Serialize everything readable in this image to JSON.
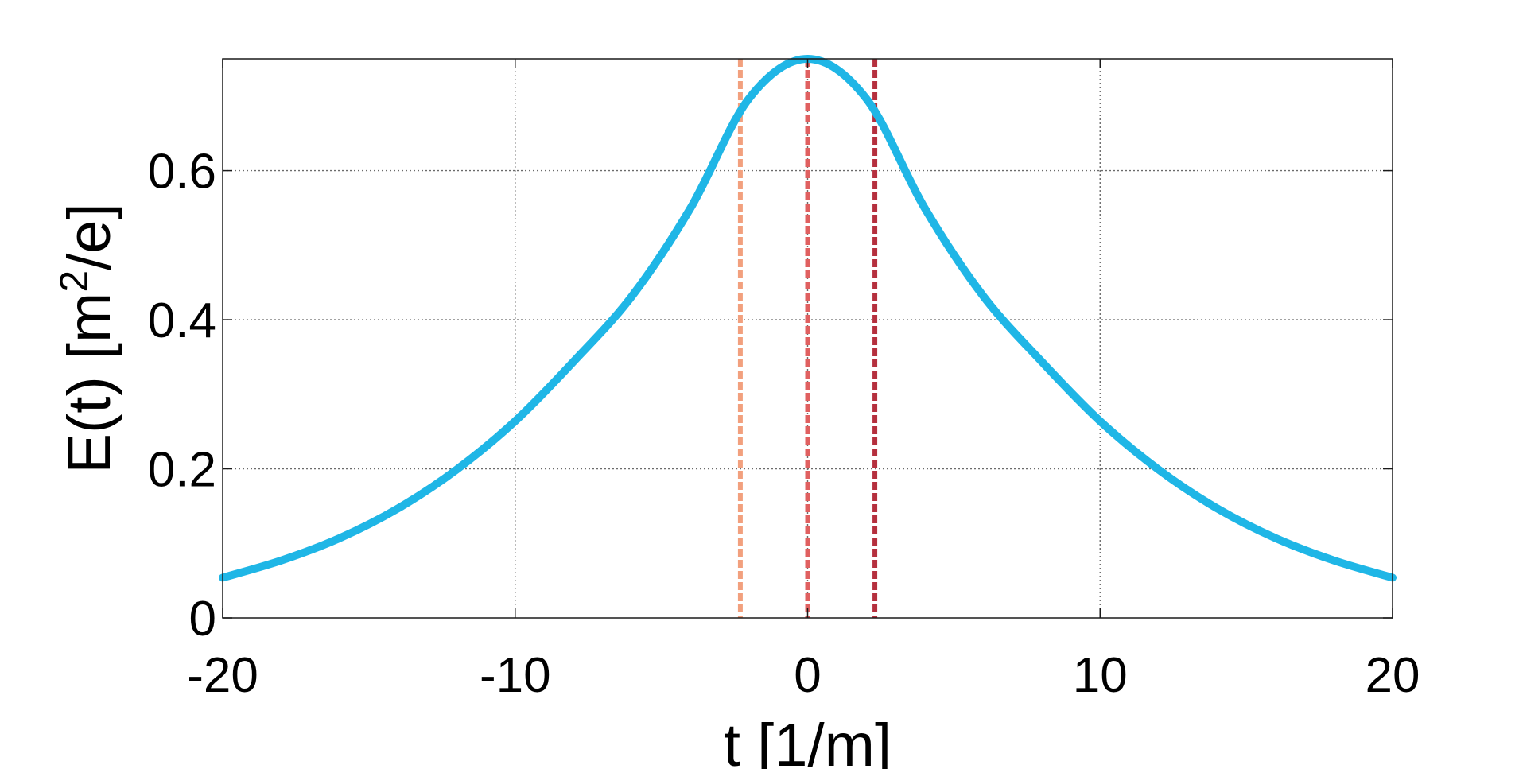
{
  "chart_data": {
    "type": "line",
    "title": "",
    "xlabel": "t [1/m]",
    "ylabel": "E(t) [m",
    "ylabel_sup": "2",
    "ylabel_tail": "/e]",
    "xlim": [
      -20,
      20
    ],
    "ylim": [
      0,
      0.75
    ],
    "xticks": [
      -20,
      -10,
      0,
      10,
      20
    ],
    "xtick_labels": [
      "-20",
      "-10",
      "0",
      "10",
      "20"
    ],
    "yticks": [
      0,
      0.2,
      0.4,
      0.6
    ],
    "ytick_labels": [
      "0",
      "0.2",
      "0.4",
      "0.6"
    ],
    "grid": true,
    "series": [
      {
        "color": "#1fb6e6",
        "x": [
          -20,
          -18,
          -16,
          -14,
          -12,
          -10,
          -8,
          -6,
          -4,
          -2,
          0,
          2,
          4,
          6,
          8,
          10,
          12,
          14,
          16,
          18,
          20
        ],
        "y": [
          0.054,
          0.077,
          0.107,
          0.147,
          0.199,
          0.264,
          0.344,
          0.432,
          0.55,
          0.697,
          0.75,
          0.697,
          0.55,
          0.432,
          0.344,
          0.264,
          0.199,
          0.147,
          0.107,
          0.077,
          0.054
        ]
      }
    ],
    "vlines": [
      {
        "x": -2.3,
        "color": "#f2a07e",
        "style": "dashed"
      },
      {
        "x": 0,
        "color": "#e06060",
        "style": "dashed"
      },
      {
        "x": 2.3,
        "color": "#b5303e",
        "style": "dashed"
      }
    ]
  }
}
